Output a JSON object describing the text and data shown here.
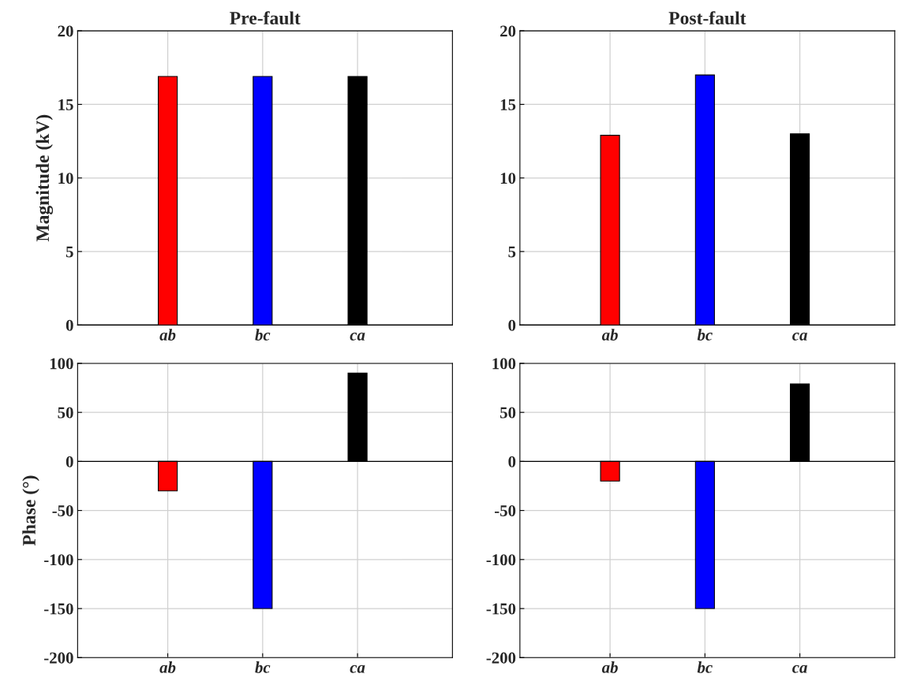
{
  "chart_data": [
    {
      "type": "bar",
      "title": "Pre-fault",
      "ylabel": "Magnitude (kV)",
      "categories": [
        "ab",
        "bc",
        "ca"
      ],
      "values": [
        16.9,
        16.9,
        16.9
      ],
      "colors": [
        "#ff0000",
        "#0000ff",
        "#000000"
      ],
      "ylim": [
        0,
        20
      ],
      "yticks": [
        0,
        5,
        10,
        15,
        20
      ],
      "grid": true
    },
    {
      "type": "bar",
      "title": "Post-fault",
      "categories": [
        "ab",
        "bc",
        "ca"
      ],
      "values": [
        12.9,
        17.0,
        13.0
      ],
      "colors": [
        "#ff0000",
        "#0000ff",
        "#000000"
      ],
      "ylim": [
        0,
        20
      ],
      "yticks": [
        0,
        5,
        10,
        15,
        20
      ],
      "grid": true
    },
    {
      "type": "bar",
      "ylabel": "Phase (°)",
      "categories": [
        "ab",
        "bc",
        "ca"
      ],
      "values": [
        -30,
        -150,
        90
      ],
      "colors": [
        "#ff0000",
        "#0000ff",
        "#000000"
      ],
      "ylim": [
        -200,
        100
      ],
      "yticks": [
        -200,
        -150,
        -100,
        -50,
        0,
        50,
        100
      ],
      "grid": true
    },
    {
      "type": "bar",
      "categories": [
        "ab",
        "bc",
        "ca"
      ],
      "values": [
        -20,
        -150,
        79
      ],
      "colors": [
        "#ff0000",
        "#0000ff",
        "#000000"
      ],
      "ylim": [
        -200,
        100
      ],
      "yticks": [
        -200,
        -150,
        -100,
        -50,
        0,
        50,
        100
      ],
      "grid": true
    }
  ]
}
